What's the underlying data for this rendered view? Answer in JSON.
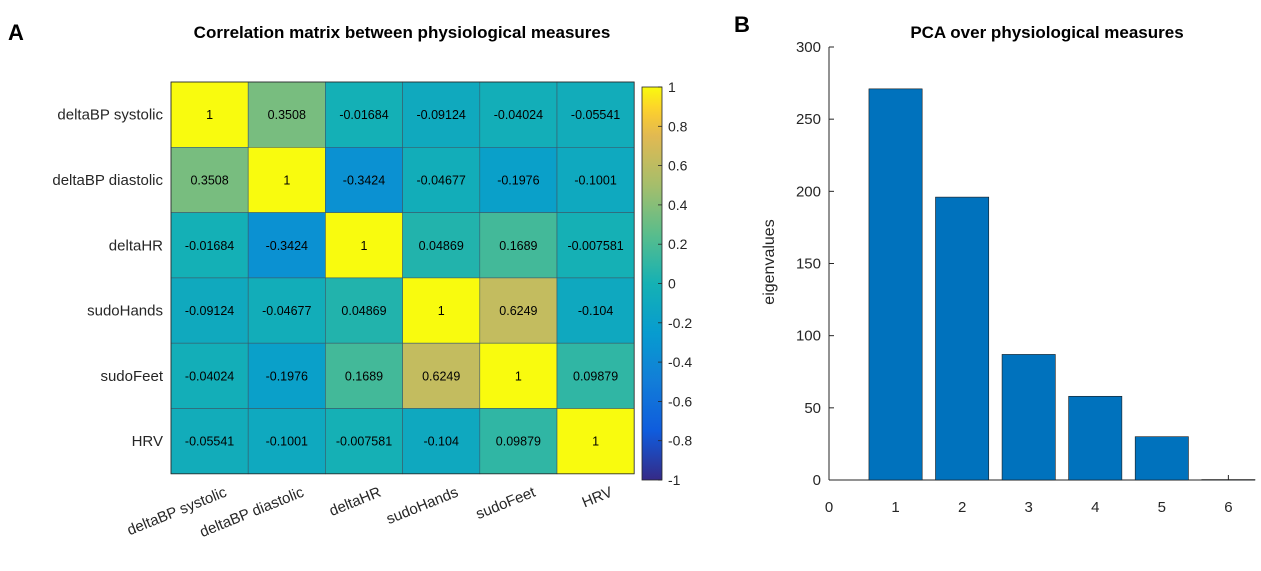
{
  "panels": {
    "a_letter": "A",
    "b_letter": "B"
  },
  "chart_data": [
    {
      "type": "heatmap",
      "title": "Correlation matrix between physiological measures",
      "row_labels": [
        "deltaBP systolic",
        "deltaBP diastolic",
        "deltaHR",
        "sudoHands",
        "sudoFeet",
        "HRV"
      ],
      "col_labels": [
        "deltaBP systolic",
        "deltaBP diastolic",
        "deltaHR",
        "sudoHands",
        "sudoFeet",
        "HRV"
      ],
      "values": [
        [
          1,
          0.3508,
          -0.01684,
          -0.09124,
          -0.04024,
          -0.05541
        ],
        [
          0.3508,
          1,
          -0.3424,
          -0.04677,
          -0.1976,
          -0.1001
        ],
        [
          -0.01684,
          -0.3424,
          1,
          0.04869,
          0.1689,
          -0.007581
        ],
        [
          -0.09124,
          -0.04677,
          0.04869,
          1,
          0.6249,
          -0.104
        ],
        [
          -0.04024,
          -0.1976,
          0.1689,
          0.6249,
          1,
          0.09879
        ],
        [
          -0.05541,
          -0.1001,
          -0.007581,
          -0.104,
          0.09879,
          1
        ]
      ],
      "value_labels": [
        [
          "1",
          "0.3508",
          "-0.01684",
          "-0.09124",
          "-0.04024",
          "-0.05541"
        ],
        [
          "0.3508",
          "1",
          "-0.3424",
          "-0.04677",
          "-0.1976",
          "-0.1001"
        ],
        [
          "-0.01684",
          "-0.3424",
          "1",
          "0.04869",
          "0.1689",
          "-0.007581"
        ],
        [
          "-0.09124",
          "-0.04677",
          "0.04869",
          "1",
          "0.6249",
          "-0.104"
        ],
        [
          "-0.04024",
          "-0.1976",
          "0.1689",
          "0.6249",
          "1",
          "0.09879"
        ],
        [
          "-0.05541",
          "-0.1001",
          "-0.007581",
          "-0.104",
          "0.09879",
          "1"
        ]
      ],
      "colorbar": {
        "range": [
          -1,
          1
        ],
        "ticks": [
          "1",
          "0.8",
          "0.6",
          "0.4",
          "0.2",
          "0",
          "-0.2",
          "-0.4",
          "-0.6",
          "-0.8",
          "-1"
        ],
        "colormap": "parula"
      }
    },
    {
      "type": "bar",
      "title": "PCA over physiological measures",
      "xlabel": "",
      "ylabel": "eigenvalues",
      "categories": [
        1,
        2,
        3,
        4,
        5,
        6
      ],
      "values": [
        271,
        196,
        87,
        58,
        30,
        0.3
      ],
      "xlim": [
        0,
        6.4
      ],
      "ylim": [
        0,
        300
      ],
      "xticks": [
        "0",
        "1",
        "2",
        "3",
        "4",
        "5",
        "6"
      ],
      "yticks": [
        "0",
        "50",
        "100",
        "150",
        "200",
        "250",
        "300"
      ],
      "bar_color": "#0072BD"
    }
  ]
}
